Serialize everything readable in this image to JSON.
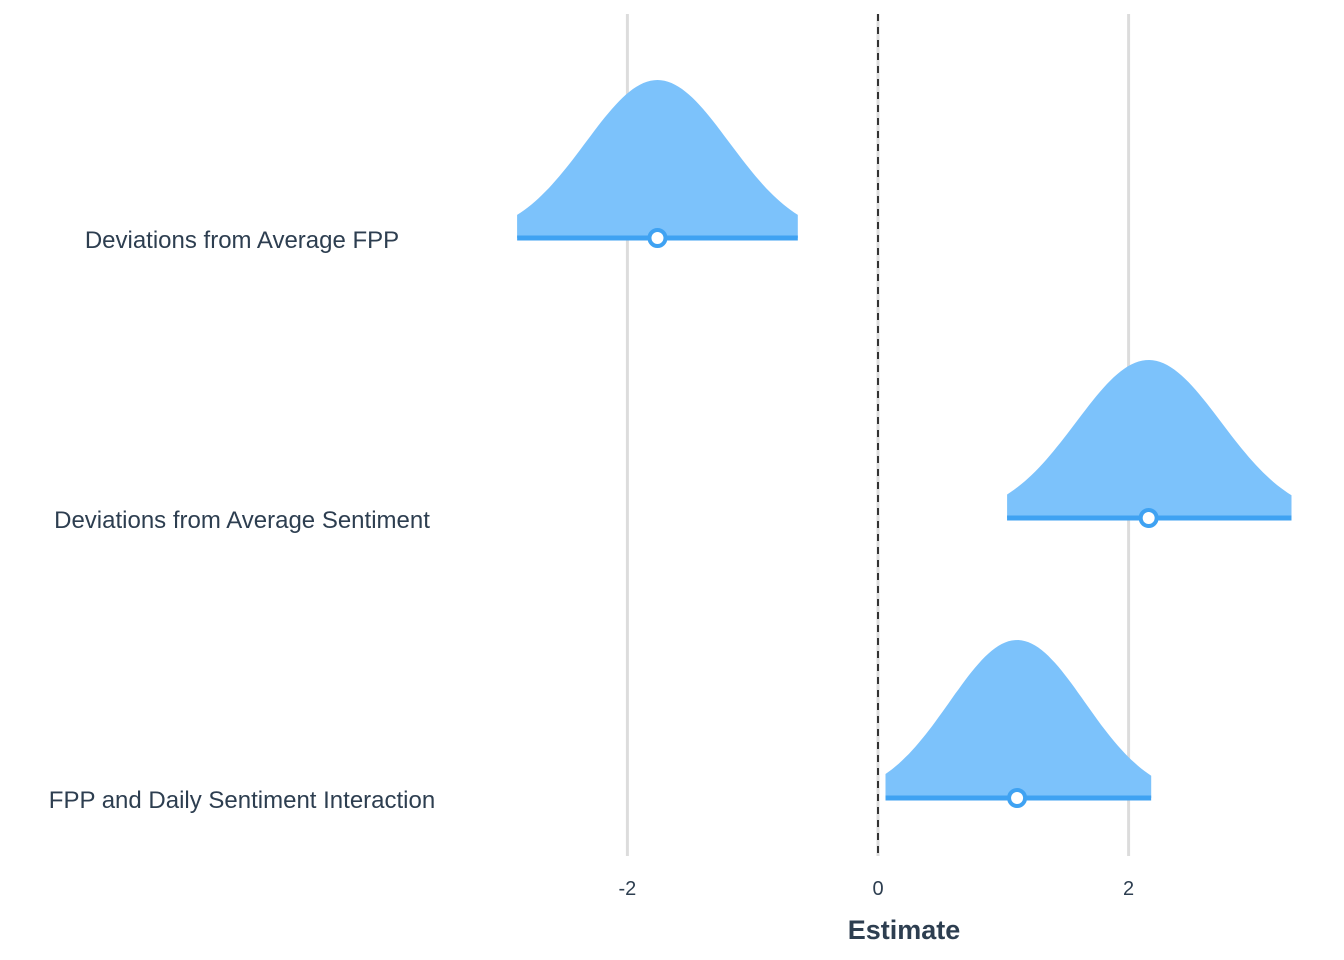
{
  "chart_data": {
    "type": "halfeye",
    "xlabel": "Estimate",
    "ylabel": "",
    "x_ticks": [
      -2,
      0,
      2
    ],
    "x_tick_labels": [
      "-2",
      "0",
      "2"
    ],
    "xlim": [
      -3.98,
      3.3
    ],
    "reference_line": {
      "x": 0,
      "style": "dashed"
    },
    "grid": "vertical major gridlines",
    "colors": {
      "density_fill": "#7cc2fb",
      "interval": "#3fa2f2",
      "point_stroke": "#3fa2f2",
      "point_fill": "#ffffff",
      "text": "#2d3e50",
      "grid": "#dcdcdc"
    },
    "terms": [
      {
        "label": "Deviations from Average FPP",
        "estimate": -1.76,
        "lower": -2.88,
        "upper": -0.64
      },
      {
        "label": "Deviations from Average Sentiment",
        "estimate": 2.16,
        "lower": 1.03,
        "upper": 3.3
      },
      {
        "label": "FPP and Daily Sentiment Interaction",
        "estimate": 1.11,
        "lower": 0.06,
        "upper": 2.18
      }
    ]
  }
}
